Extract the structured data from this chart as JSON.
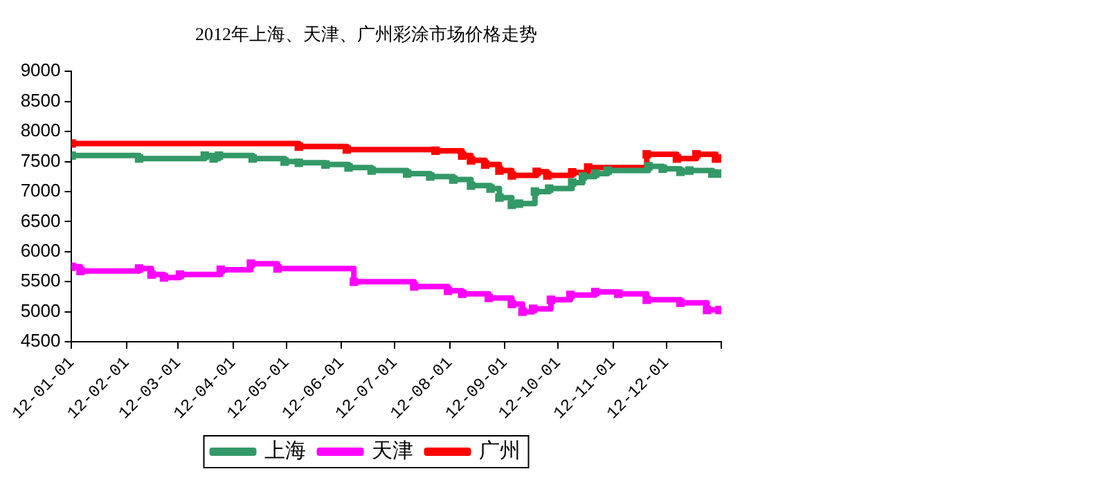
{
  "chart_data": {
    "type": "step",
    "title": "2012年上海、天津、广州彩涂市场价格走势",
    "xlim": [
      "2012-01-01",
      "2013-01-01"
    ],
    "xticks": [
      {
        "value": "2012-01-01",
        "label": "12-01-01"
      },
      {
        "value": "2012-02-01",
        "label": "12-02-01"
      },
      {
        "value": "2012-03-01",
        "label": "12-03-01"
      },
      {
        "value": "2012-04-01",
        "label": "12-04-01"
      },
      {
        "value": "2012-05-01",
        "label": "12-05-01"
      },
      {
        "value": "2012-06-01",
        "label": "12-06-01"
      },
      {
        "value": "2012-07-01",
        "label": "12-07-01"
      },
      {
        "value": "2012-08-01",
        "label": "12-08-01"
      },
      {
        "value": "2012-09-01",
        "label": "12-09-01"
      },
      {
        "value": "2012-10-01",
        "label": "12-10-01"
      },
      {
        "value": "2012-11-01",
        "label": "12-11-01"
      },
      {
        "value": "2012-12-01",
        "label": "12-12-01"
      },
      {
        "value": "2013-01-01",
        "label": null
      }
    ],
    "ylim": [
      4500,
      9000
    ],
    "yticks": [
      4500,
      5000,
      5500,
      6000,
      6500,
      7000,
      7500,
      8000,
      8500,
      9000
    ],
    "grid": false,
    "legend": "bottom",
    "marker": "square",
    "line_style": "solid",
    "series": [
      {
        "name": "上海",
        "color": "#339966",
        "x": [
          "2012-01-01",
          "2012-02-08",
          "2012-03-16",
          "2012-03-21",
          "2012-03-24",
          "2012-04-12",
          "2012-04-30",
          "2012-05-08",
          "2012-05-23",
          "2012-06-05",
          "2012-06-18",
          "2012-07-08",
          "2012-07-21",
          "2012-08-03",
          "2012-08-13",
          "2012-08-24",
          "2012-08-29",
          "2012-09-05",
          "2012-09-09",
          "2012-09-18",
          "2012-09-26",
          "2012-10-09",
          "2012-10-15",
          "2012-10-22",
          "2012-10-29",
          "2012-11-21",
          "2012-11-29",
          "2012-12-09",
          "2012-12-14",
          "2012-12-27",
          "2012-12-31"
        ],
        "values": [
          7600,
          7550,
          7600,
          7550,
          7600,
          7550,
          7500,
          7480,
          7450,
          7400,
          7350,
          7300,
          7250,
          7200,
          7100,
          7050,
          6900,
          6780,
          6800,
          7000,
          7050,
          7150,
          7250,
          7300,
          7350,
          7420,
          7380,
          7330,
          7350,
          7300,
          7300
        ]
      },
      {
        "name": "天津",
        "color": "#ff00ff",
        "x": [
          "2012-01-01",
          "2012-01-06",
          "2012-02-08",
          "2012-02-15",
          "2012-02-22",
          "2012-03-02",
          "2012-03-25",
          "2012-04-11",
          "2012-04-26",
          "2012-06-08",
          "2012-07-12",
          "2012-07-31",
          "2012-08-08",
          "2012-08-23",
          "2012-09-05",
          "2012-09-11",
          "2012-09-17",
          "2012-09-27",
          "2012-10-08",
          "2012-10-22",
          "2012-11-04",
          "2012-11-20",
          "2012-12-09",
          "2012-12-24",
          "2012-12-31"
        ],
        "values": [
          5750,
          5680,
          5720,
          5620,
          5570,
          5620,
          5700,
          5800,
          5720,
          5500,
          5420,
          5350,
          5300,
          5230,
          5130,
          5000,
          5050,
          5200,
          5280,
          5330,
          5300,
          5200,
          5150,
          5030,
          5030
        ]
      },
      {
        "name": "广州",
        "color": "#ff0000",
        "x": [
          "2012-01-01",
          "2012-05-08",
          "2012-06-04",
          "2012-07-24",
          "2012-08-08",
          "2012-08-13",
          "2012-08-21",
          "2012-08-29",
          "2012-09-05",
          "2012-09-19",
          "2012-09-25",
          "2012-10-09",
          "2012-10-18",
          "2012-11-20",
          "2012-12-07",
          "2012-12-18",
          "2012-12-29",
          "2012-12-31"
        ],
        "values": [
          7800,
          7750,
          7700,
          7680,
          7600,
          7520,
          7450,
          7350,
          7270,
          7330,
          7270,
          7320,
          7400,
          7620,
          7550,
          7620,
          7550,
          7550
        ]
      }
    ]
  }
}
